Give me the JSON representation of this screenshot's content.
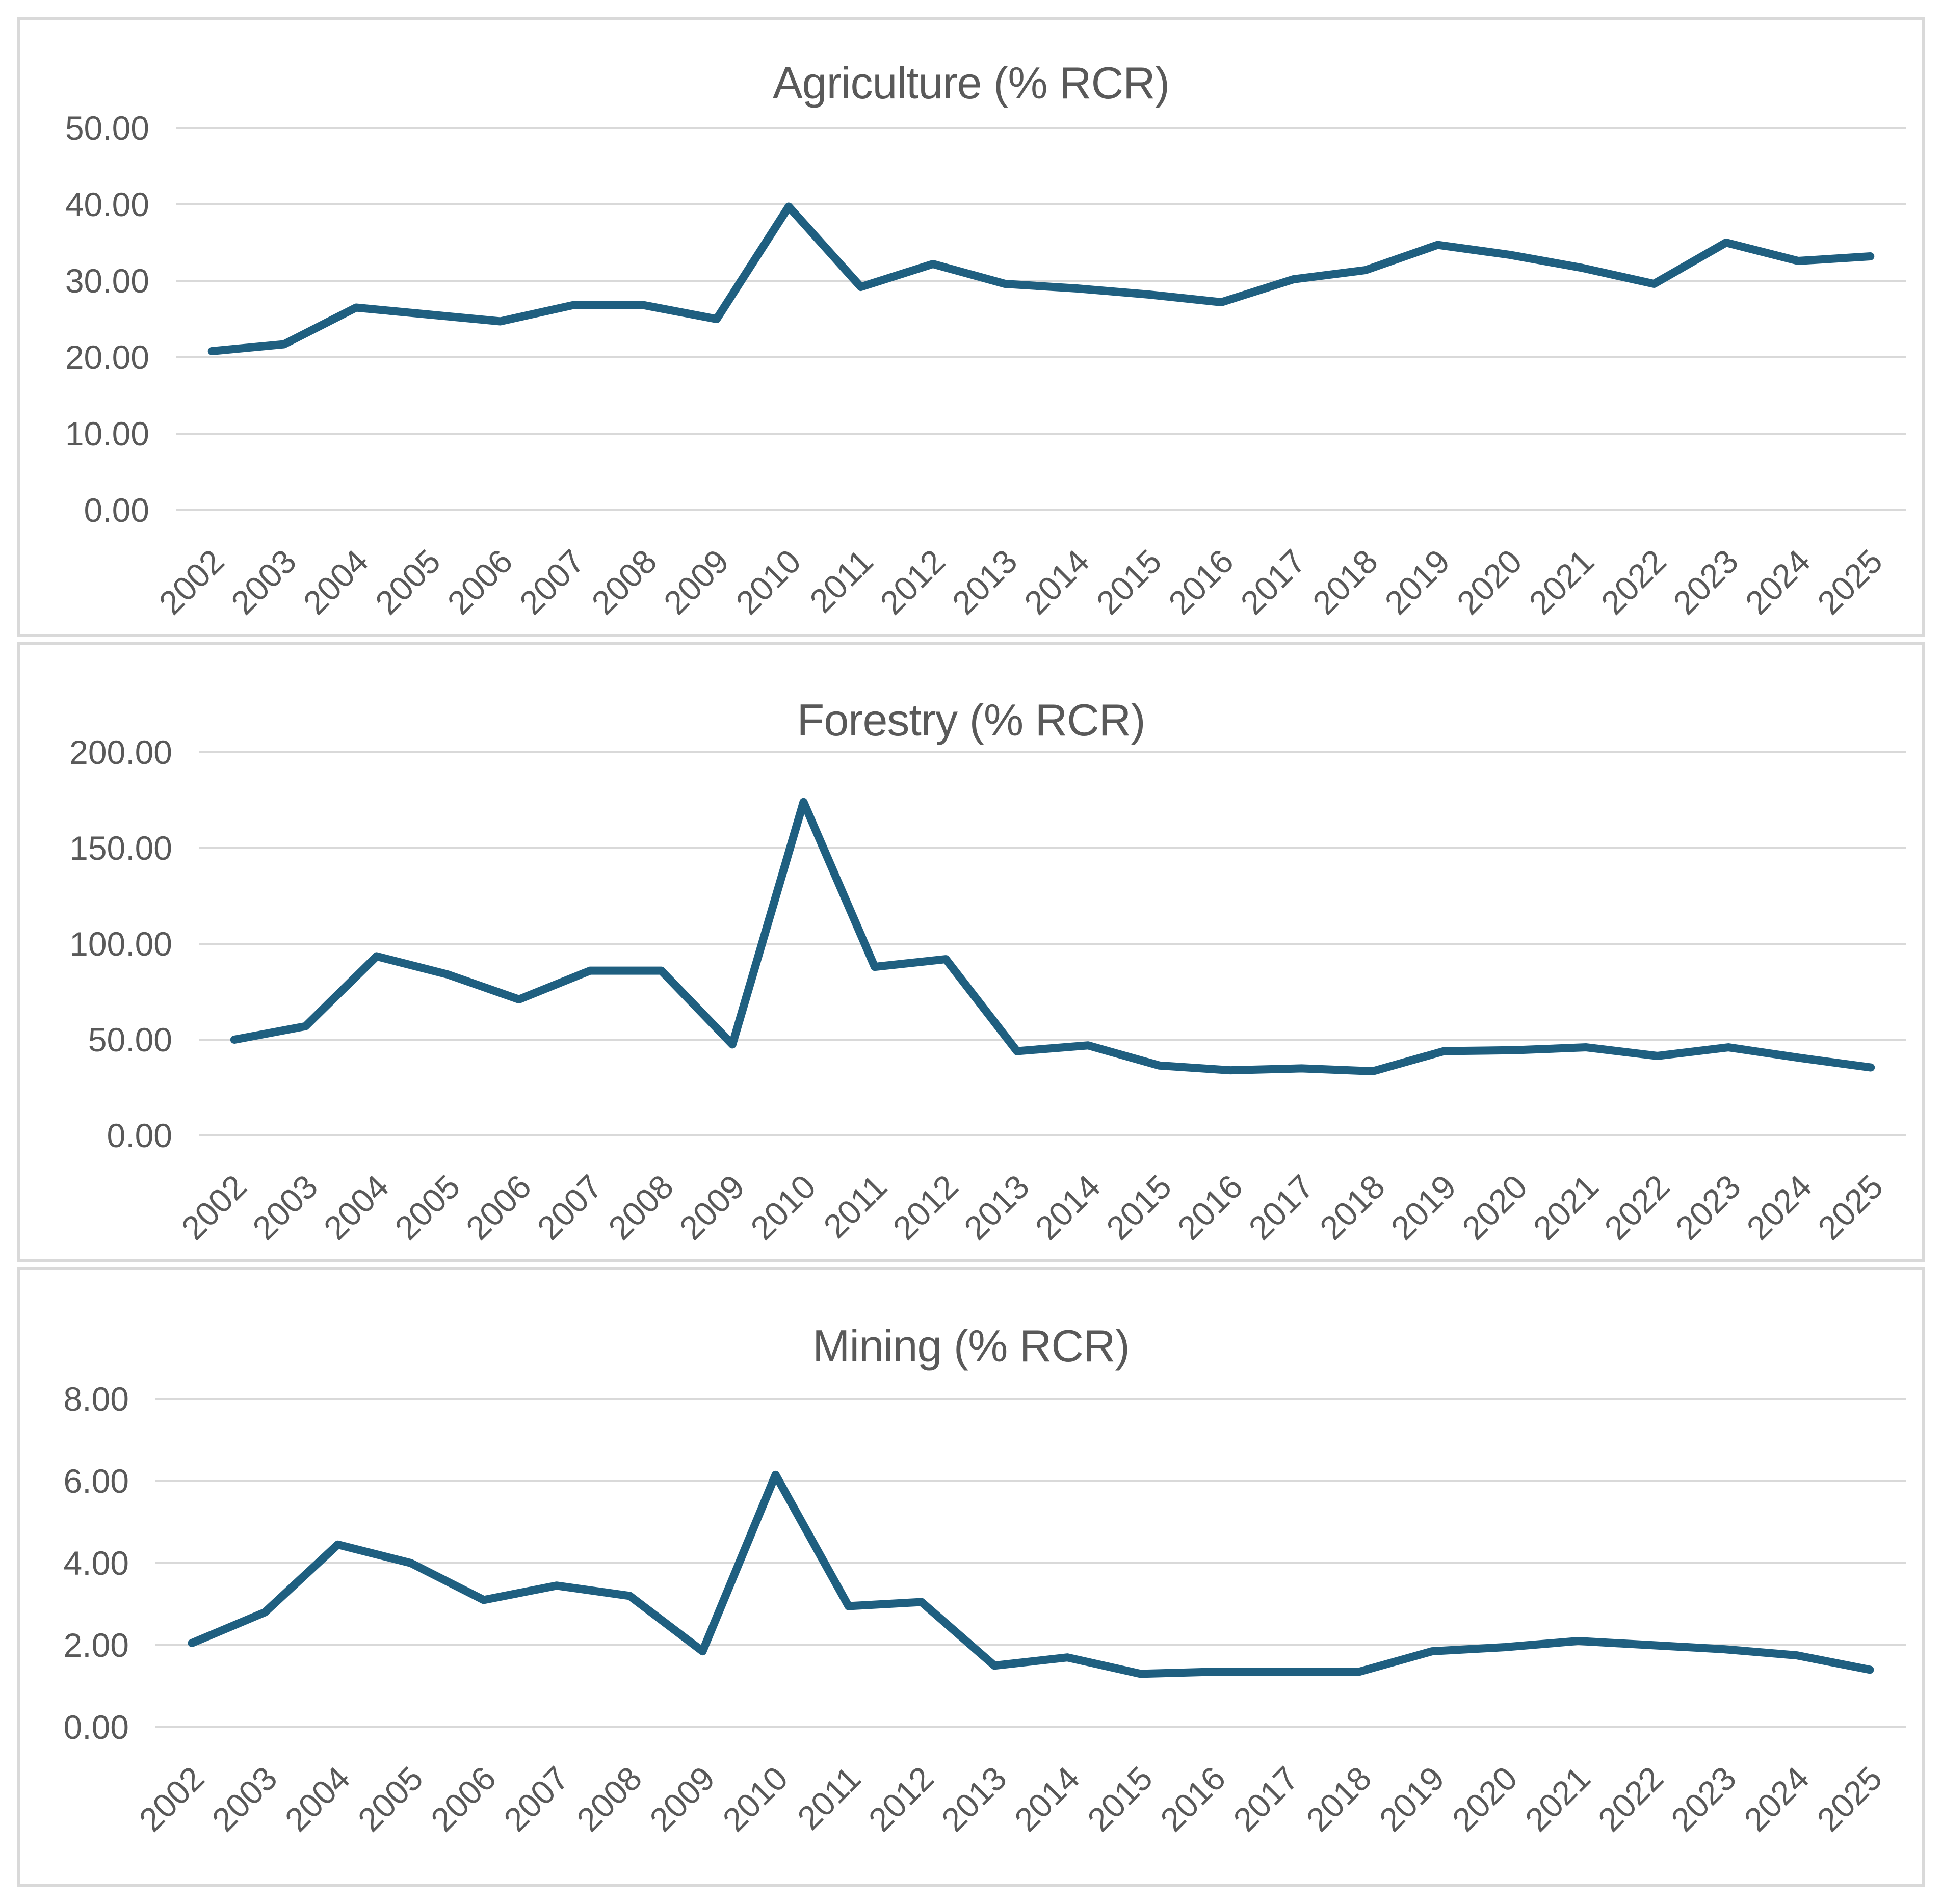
{
  "colors": {
    "line": "#1F5F80",
    "gridline": "#D9D9D9",
    "panel_border": "#D9D9D9",
    "text": "#595959",
    "background": "#FFFFFF"
  },
  "chart_data": [
    {
      "type": "line",
      "title": "Agriculture (% RCR)",
      "categories": [
        "2002",
        "2003",
        "2004",
        "2005",
        "2006",
        "2007",
        "2008",
        "2009",
        "2010",
        "2011",
        "2012",
        "2013",
        "2014",
        "2015",
        "2016",
        "2017",
        "2018",
        "2019",
        "2020",
        "2021",
        "2022",
        "2023",
        "2024",
        "2025"
      ],
      "values": [
        20.8,
        21.7,
        26.5,
        25.6,
        24.7,
        26.8,
        26.8,
        25.0,
        39.7,
        29.2,
        32.2,
        29.6,
        29.0,
        28.2,
        27.2,
        30.2,
        31.4,
        34.7,
        33.4,
        31.7,
        29.6,
        35.0,
        32.6,
        33.2
      ],
      "xlabel": "",
      "ylabel": "",
      "ylim": [
        0,
        50
      ],
      "ytick_values": [
        0,
        10,
        20,
        30,
        40,
        50
      ],
      "ytick_labels": [
        "0.00",
        "10.00",
        "20.00",
        "30.00",
        "40.00",
        "50.00"
      ],
      "grid": true,
      "legend": "none"
    },
    {
      "type": "line",
      "title": "Forestry (% RCR)",
      "categories": [
        "2002",
        "2003",
        "2004",
        "2005",
        "2006",
        "2007",
        "2008",
        "2009",
        "2010",
        "2011",
        "2012",
        "2013",
        "2014",
        "2015",
        "2016",
        "2017",
        "2018",
        "2019",
        "2020",
        "2021",
        "2022",
        "2023",
        "2024",
        "2025"
      ],
      "values": [
        50,
        57,
        93.5,
        84,
        71,
        86,
        86,
        47.5,
        174,
        88,
        92,
        44,
        47,
        36.5,
        34,
        35,
        33.5,
        44,
        44.5,
        46,
        41.5,
        46,
        40.5,
        35.5
      ],
      "xlabel": "",
      "ylabel": "",
      "ylim": [
        0,
        200
      ],
      "ytick_values": [
        0,
        50,
        100,
        150,
        200
      ],
      "ytick_labels": [
        "0.00",
        "50.00",
        "100.00",
        "150.00",
        "200.00"
      ],
      "grid": true,
      "legend": "none"
    },
    {
      "type": "line",
      "title": "Mining (% RCR)",
      "categories": [
        "2002",
        "2003",
        "2004",
        "2005",
        "2006",
        "2007",
        "2008",
        "2009",
        "2010",
        "2011",
        "2012",
        "2013",
        "2014",
        "2015",
        "2016",
        "2017",
        "2018",
        "2019",
        "2020",
        "2021",
        "2022",
        "2023",
        "2024",
        "2025"
      ],
      "values": [
        2.05,
        2.8,
        4.45,
        4.0,
        3.1,
        3.45,
        3.2,
        1.85,
        6.15,
        2.95,
        3.05,
        1.5,
        1.7,
        1.3,
        1.35,
        1.35,
        1.35,
        1.85,
        1.95,
        2.1,
        2.0,
        1.9,
        1.75,
        1.4
      ],
      "xlabel": "",
      "ylabel": "",
      "ylim": [
        0,
        8
      ],
      "ytick_values": [
        0,
        2,
        4,
        6,
        8
      ],
      "ytick_labels": [
        "0.00",
        "2.00",
        "4.00",
        "6.00",
        "8.00"
      ],
      "grid": true,
      "legend": "none"
    }
  ]
}
